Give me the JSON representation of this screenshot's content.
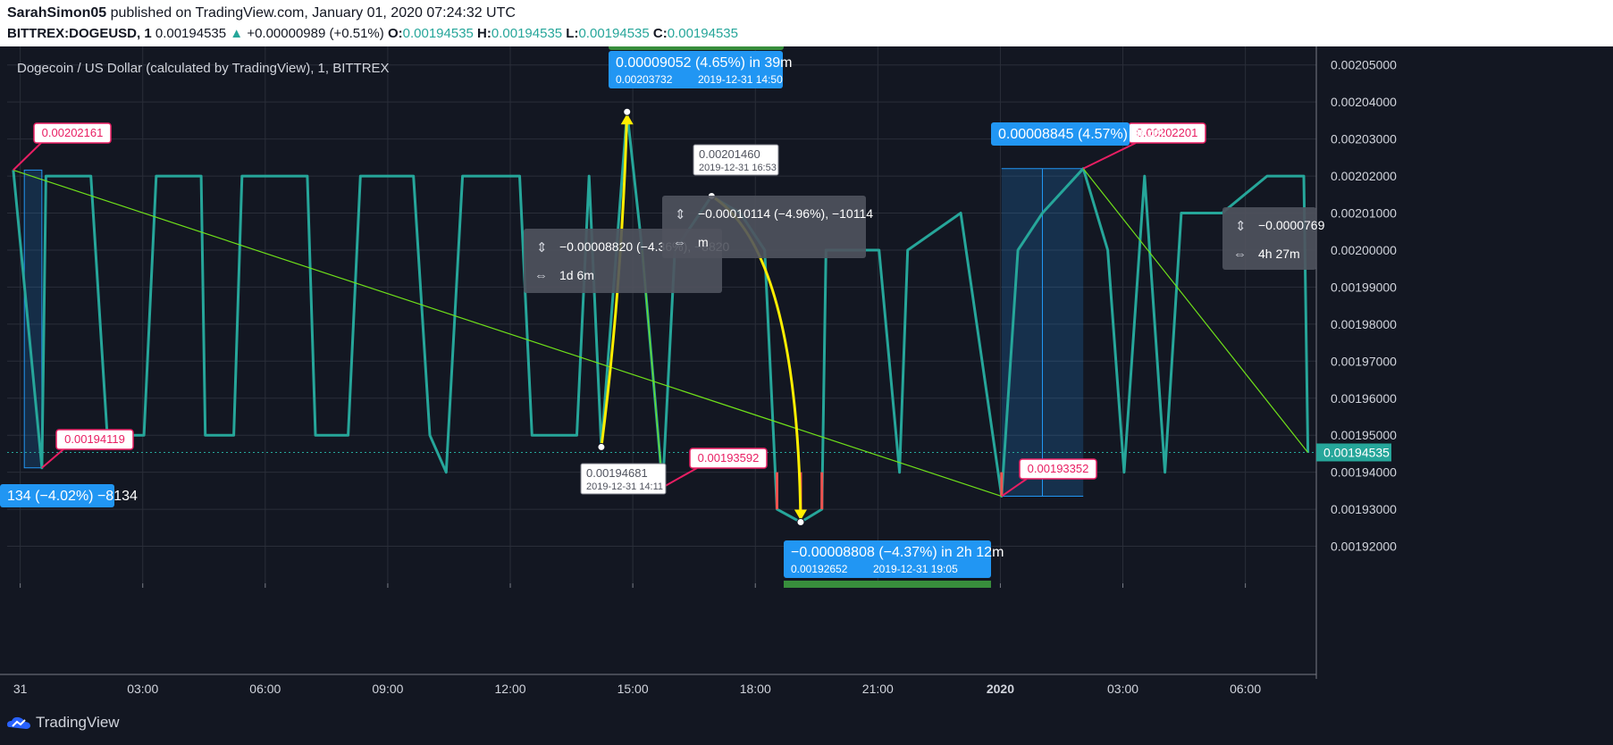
{
  "header": {
    "author": "SarahSimon05",
    "published": "published on TradingView.com, January 01, 2020 07:24:32 UTC",
    "symbol": "BITTREX:DOGEUSD, 1",
    "last": "0.00194535",
    "change": "+0.00000989 (+0.51%)",
    "o_label": "O:",
    "o_value": "0.00194535",
    "h_label": "H:",
    "h_value": "0.00194535",
    "l_label": "L:",
    "l_value": "0.00194535",
    "c_label": "C:",
    "c_value": "0.00194535"
  },
  "chart_title": "Dogecoin / US Dollar (calculated by TradingView), 1, BITTREX",
  "footer": {
    "brand": "TradingView"
  },
  "colors": {
    "bg": "#131722",
    "line": "#26a69a",
    "down": "#ef5350",
    "accent": "#2196f3",
    "trend": "#6fe01a",
    "path": "#ffee00",
    "label_red": "#e91e63"
  },
  "chart_data": {
    "type": "line",
    "title": "Dogecoin / US Dollar (calculated by TradingView), 1, BITTREX",
    "x_ticks": [
      "31",
      "03:00",
      "06:00",
      "09:00",
      "12:00",
      "15:00",
      "18:00",
      "21:00",
      "2020",
      "03:00",
      "06:00"
    ],
    "y_ticks": [
      "0.00205000",
      "0.00204000",
      "0.00203000",
      "0.00202000",
      "0.00201000",
      "0.00200000",
      "0.00199000",
      "0.00198000",
      "0.00197000",
      "0.00196000",
      "0.00195000",
      "0.00194000",
      "0.00193000",
      "0.00192000"
    ],
    "ylim": [
      0.00191,
      0.002055
    ],
    "last_price": "0.00194535",
    "series": [
      {
        "values_hours_from_2019_12_31_00_00": [
          [
            -0.2,
            0.00202161
          ],
          [
            0.5,
            0.00194119
          ],
          [
            0.6,
            0.00202
          ],
          [
            1.7,
            0.00202
          ],
          [
            2.1,
            0.00195
          ],
          [
            3.0,
            0.00195
          ],
          [
            3.3,
            0.00202
          ],
          [
            4.4,
            0.00202
          ],
          [
            4.5,
            0.00195
          ],
          [
            5.2,
            0.00195
          ],
          [
            5.4,
            0.00202
          ],
          [
            7.0,
            0.00202
          ],
          [
            7.2,
            0.00195
          ],
          [
            8.0,
            0.00195
          ],
          [
            8.3,
            0.00202
          ],
          [
            9.6,
            0.00202
          ],
          [
            10.0,
            0.00195
          ],
          [
            10.4,
            0.00194
          ],
          [
            10.8,
            0.00202
          ],
          [
            12.2,
            0.00202
          ],
          [
            12.5,
            0.00195
          ],
          [
            13.6,
            0.00195
          ],
          [
            13.9,
            0.00202
          ],
          [
            14.2,
            0.00194681
          ],
          [
            14.83,
            0.00203732
          ],
          [
            15.2,
            0.002
          ],
          [
            15.7,
            0.00193592
          ],
          [
            16.0,
            0.002
          ],
          [
            16.9,
            0.0020146
          ],
          [
            17.6,
            0.00201
          ],
          [
            18.2,
            0.002
          ],
          [
            18.5,
            0.00193
          ],
          [
            19.08,
            0.00192652
          ],
          [
            19.6,
            0.00193
          ],
          [
            19.7,
            0.002
          ],
          [
            21.0,
            0.002
          ],
          [
            21.5,
            0.00194
          ],
          [
            21.7,
            0.002
          ],
          [
            23.0,
            0.00201
          ],
          [
            24.0,
            0.00193352
          ],
          [
            24.4,
            0.002
          ],
          [
            25.0,
            0.00201
          ],
          [
            26.0,
            0.00202201
          ],
          [
            26.6,
            0.002
          ],
          [
            27.0,
            0.00194
          ],
          [
            27.5,
            0.00202
          ],
          [
            28.0,
            0.00194
          ],
          [
            28.4,
            0.00201
          ],
          [
            29.4,
            0.00201
          ],
          [
            30.5,
            0.00202
          ],
          [
            31.4,
            0.00202
          ],
          [
            31.5,
            0.00194535
          ]
        ]
      }
    ],
    "price_labels": [
      "0.00202161",
      "0.00194119",
      "0.00194681",
      "0.00193592",
      "0.00193352",
      "0.00202201"
    ],
    "annotations": {
      "peak": {
        "value": "0.00009052 (4.65%) in 39m",
        "sub_price": "0.00203732",
        "sub_time": "2019-12-31   14:50"
      },
      "trough": {
        "value": "−0.00008808 (−4.37%) in 2h 12m",
        "sub_price": "0.00192652",
        "sub_time": "2019-12-31   19:05"
      },
      "note_top": {
        "price": "0.00201460",
        "time": "2019-12-31 16:53"
      },
      "note_low": {
        "price": "0.00194681",
        "time": "2019-12-31 14:11"
      },
      "range_left": "−0.00008820 (−4.36%), −8820",
      "range_left_time": "1d 6m",
      "range_mid": "−0.00010114 (−4.96%), −10114",
      "range_mid_time": "m",
      "range_right": "−0.0000769",
      "range_right_time": "4h 27m",
      "right_box": "0.00008845 (4.57%) 8845",
      "left_box": "134 (−4.02%) −8134",
      "green_top": "DOGEUSD"
    }
  }
}
